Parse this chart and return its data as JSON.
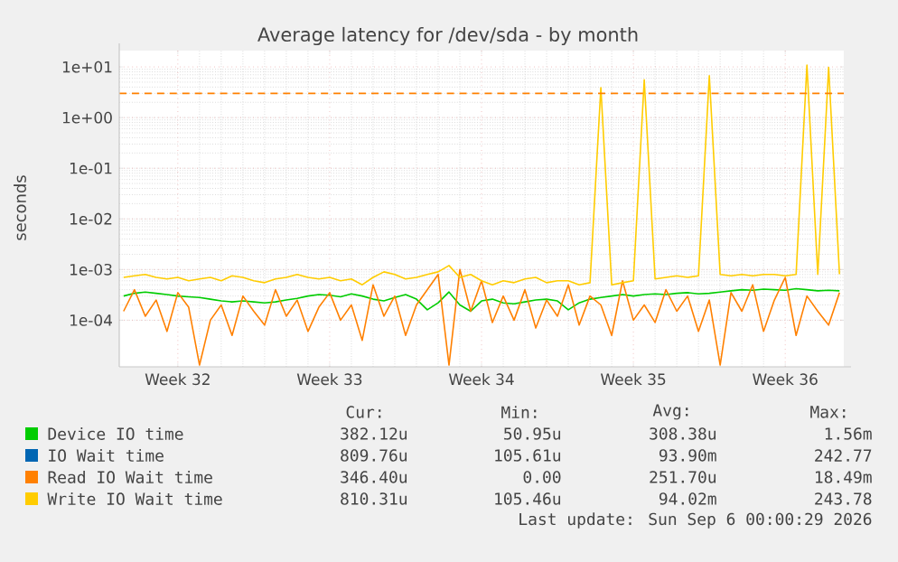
{
  "chart_data": {
    "type": "line",
    "title": "Average latency for /dev/sda - by month",
    "ylabel": "seconds",
    "log": "y",
    "grid": true,
    "legend": "bottom",
    "categories": [
      null,
      null,
      null,
      null,
      null,
      "Week 32",
      null,
      null,
      null,
      null,
      null,
      null,
      null,
      null,
      null,
      null,
      null,
      null,
      null,
      "Week 33",
      null,
      null,
      null,
      null,
      null,
      null,
      null,
      null,
      null,
      null,
      null,
      null,
      null,
      "Week 34",
      null,
      null,
      null,
      null,
      null,
      null,
      null,
      null,
      null,
      null,
      null,
      null,
      null,
      "Week 35",
      null,
      null,
      null,
      null,
      null,
      null,
      null,
      null,
      null,
      null,
      null,
      null,
      null,
      "Week 36",
      null,
      null,
      null,
      null,
      null
    ],
    "ylim": [
      1.2e-05,
      21
    ],
    "yticks": [
      {
        "value": 0.0001,
        "label": "1e-04"
      },
      {
        "value": 0.001,
        "label": "1e-03"
      },
      {
        "value": 0.01,
        "label": "1e-02"
      },
      {
        "value": 0.1,
        "label": "1e-01"
      },
      {
        "value": 1,
        "label": "1e+00"
      },
      {
        "value": 10,
        "label": "1e+01"
      }
    ],
    "ref_lines": [
      {
        "axis": "y",
        "value": 3,
        "color": "#ff8000",
        "line_style": "dashed"
      }
    ],
    "annotations": [
      "Cur:",
      "Min:",
      "Avg:",
      "Max:",
      "382.12u",
      "50.95u",
      "308.38u",
      "1.56m",
      "809.76u",
      "105.61u",
      "93.90m",
      "242.77",
      "346.40u",
      "0.00",
      "251.70u",
      "18.49m",
      "810.31u",
      "105.46u",
      "94.02m",
      "243.78",
      "Last update: Sun Sep 6 00:00:29 2026"
    ],
    "series": [
      {
        "name": "Device IO time",
        "color": "#00cc00",
        "values": [
          0.0003,
          0.00034,
          0.00036,
          0.00034,
          0.00032,
          0.0003,
          0.00029,
          0.00028,
          0.00026,
          0.00024,
          0.00023,
          0.00024,
          0.00023,
          0.00022,
          0.00023,
          0.00025,
          0.00027,
          0.0003,
          0.00032,
          0.00031,
          0.00029,
          0.00033,
          0.0003,
          0.00026,
          0.00024,
          0.00028,
          0.00032,
          0.00026,
          0.00016,
          0.00022,
          0.00036,
          0.0002,
          0.00015,
          0.00024,
          0.00026,
          0.00022,
          0.00021,
          0.00023,
          0.00025,
          0.00026,
          0.00024,
          0.00016,
          0.00022,
          0.00026,
          0.00028,
          0.0003,
          0.00032,
          0.0003,
          0.00032,
          0.00033,
          0.00032,
          0.00034,
          0.00035,
          0.00033,
          0.00034,
          0.00036,
          0.00038,
          0.0004,
          0.00039,
          0.00041,
          0.0004,
          0.00039,
          0.00042,
          0.0004,
          0.00038,
          0.00039,
          0.00038
        ]
      },
      {
        "name": "IO Wait time",
        "color": "#0066b3",
        "values": [
          null,
          null,
          null,
          null,
          null,
          null,
          null,
          null,
          null,
          null,
          null,
          null,
          null,
          null,
          null,
          null,
          null,
          null,
          null,
          null,
          null,
          null,
          null,
          null,
          null,
          null,
          null,
          null,
          null,
          null,
          null,
          null,
          null,
          null,
          null,
          null,
          null,
          null,
          null,
          null,
          null,
          null,
          null,
          null,
          null,
          null,
          null,
          null,
          null,
          null,
          null,
          null,
          null,
          null,
          null,
          null,
          null,
          null,
          null,
          null,
          null,
          null,
          null,
          null,
          null,
          null,
          null
        ]
      },
      {
        "name": "Read IO Wait time",
        "color": "#ff8000",
        "values": [
          0.00015,
          0.0004,
          0.00012,
          0.00025,
          6e-05,
          0.00035,
          0.00018,
          1.3e-05,
          0.0001,
          0.0002,
          5e-05,
          0.0003,
          0.00015,
          8e-05,
          0.0004,
          0.00012,
          0.00025,
          6e-05,
          0.00018,
          0.00035,
          0.0001,
          0.0002,
          4e-05,
          0.0005,
          0.00012,
          0.0003,
          5e-05,
          0.0002,
          0.0004,
          0.0008,
          1.3e-05,
          0.001,
          0.00015,
          0.0006,
          9e-05,
          0.0003,
          0.0001,
          0.0004,
          7e-05,
          0.00025,
          0.00012,
          0.0005,
          8e-05,
          0.0003,
          0.0002,
          5e-05,
          0.0006,
          0.0001,
          0.0002,
          9e-05,
          0.0004,
          0.00015,
          0.0003,
          6e-05,
          0.00025,
          1.3e-05,
          0.00035,
          0.00015,
          0.0005,
          6e-05,
          0.00025,
          0.0007,
          5e-05,
          0.0003,
          0.00015,
          8e-05,
          0.00035
        ]
      },
      {
        "name": "Write IO Wait time",
        "color": "#ffcc00",
        "values": [
          0.0007,
          0.00075,
          0.0008,
          0.0007,
          0.00065,
          0.0007,
          0.0006,
          0.00065,
          0.0007,
          0.0006,
          0.00075,
          0.0007,
          0.0006,
          0.00055,
          0.00065,
          0.0007,
          0.0008,
          0.0007,
          0.00065,
          0.0007,
          0.0006,
          0.00065,
          0.0005,
          0.0007,
          0.0009,
          0.0008,
          0.00065,
          0.0007,
          0.0008,
          0.0009,
          0.0012,
          0.0007,
          0.0008,
          0.0006,
          0.0005,
          0.0006,
          0.00055,
          0.00065,
          0.0007,
          0.00055,
          0.0006,
          0.0006,
          0.0005,
          0.00055,
          3.9,
          0.0005,
          0.00055,
          0.0006,
          5.6,
          0.00065,
          0.0007,
          0.00075,
          0.0007,
          0.00075,
          6.7,
          0.0008,
          0.00075,
          0.0008,
          0.00075,
          0.0008,
          0.0008,
          0.00075,
          0.0008,
          10.9,
          0.0008,
          9.8,
          0.00081
        ]
      }
    ]
  }
}
